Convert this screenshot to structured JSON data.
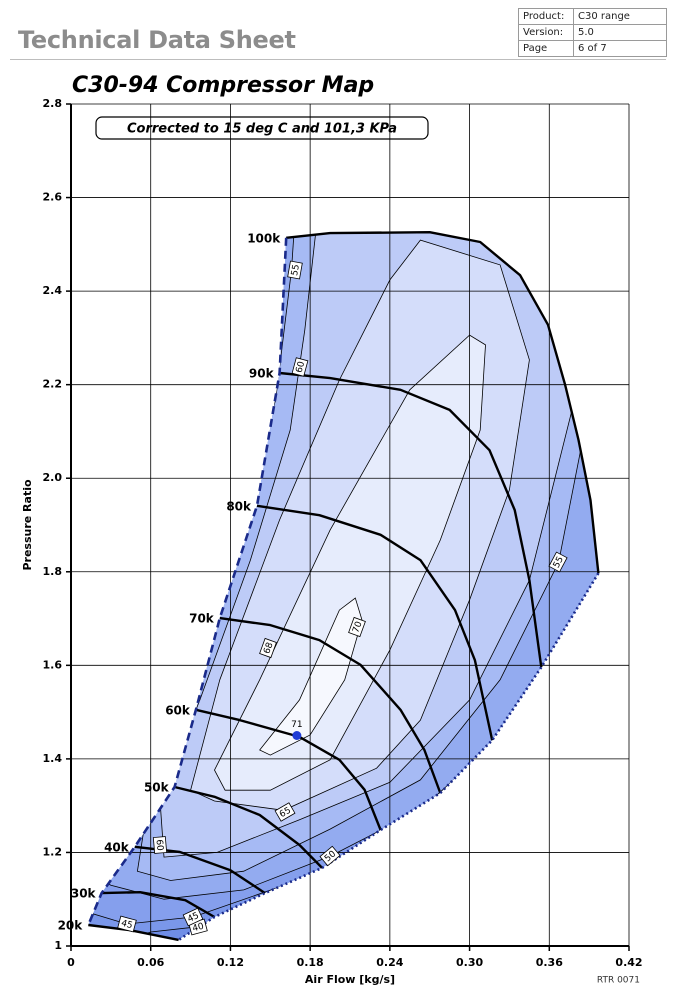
{
  "header": {
    "title": "Technical Data Sheet",
    "table": [
      [
        "Product:",
        "C30 range"
      ],
      [
        "Version:",
        "5.0"
      ],
      [
        "Page",
        "6 of 7"
      ]
    ]
  },
  "footer": "RTR 0071",
  "chart_data": {
    "type": "compressor-map",
    "title": "C30-94 Compressor Map",
    "subtitle": "Corrected to 15 deg C and 101,3 KPa",
    "x_label": "Air Flow [kg/s]",
    "y_label": "Pressure Ratio",
    "xlim": [
      0,
      0.42
    ],
    "ylim": [
      1,
      2.8
    ],
    "xticks": [
      0,
      0.06,
      0.12,
      0.18,
      0.24,
      {
        "value": 0.3,
        "label": "0.30"
      },
      0.36,
      0.42
    ],
    "yticks": [
      1,
      1.2,
      1.4,
      1.6,
      1.8,
      {
        "value": 2,
        "label": "2.0"
      },
      2.2,
      2.4,
      2.6,
      2.8
    ],
    "grid": true,
    "speed_line_color": "#000000",
    "surge_color": "#1a2a8a",
    "choke_color": "#1a2a8a",
    "envelope_color": "#6f8de6",
    "speed_lines": [
      {
        "name": "100k",
        "x": [
          0.162,
          0.195,
          0.27,
          0.308,
          0.338,
          0.359,
          0.372,
          0.382,
          0.391,
          0.397
        ],
        "values": [
          2.514,
          2.524,
          2.526,
          2.505,
          2.434,
          2.328,
          2.199,
          2.082,
          1.953,
          1.797
        ]
      },
      {
        "name": "90k",
        "x": [
          0.157,
          0.195,
          0.248,
          0.285,
          0.315,
          0.334,
          0.345,
          0.354
        ],
        "values": [
          2.225,
          2.214,
          2.189,
          2.146,
          2.06,
          1.932,
          1.782,
          1.596
        ]
      },
      {
        "name": "80k",
        "x": [
          0.14,
          0.187,
          0.233,
          0.263,
          0.289,
          0.304,
          0.317
        ],
        "values": [
          1.941,
          1.921,
          1.879,
          1.825,
          1.718,
          1.611,
          1.44
        ]
      },
      {
        "name": "70k",
        "x": [
          0.112,
          0.15,
          0.187,
          0.218,
          0.248,
          0.266,
          0.278
        ],
        "values": [
          1.701,
          1.686,
          1.654,
          1.601,
          1.505,
          1.419,
          1.327
        ]
      },
      {
        "name": "60k",
        "x": [
          0.094,
          0.127,
          0.172,
          0.202,
          0.221,
          0.233
        ],
        "values": [
          1.505,
          1.483,
          1.447,
          1.398,
          1.334,
          1.248
        ]
      },
      {
        "name": "50k",
        "x": [
          0.078,
          0.108,
          0.142,
          0.172,
          0.189
        ],
        "values": [
          1.34,
          1.319,
          1.28,
          1.216,
          1.167
        ]
      },
      {
        "name": "40k",
        "x": [
          0.048,
          0.082,
          0.12,
          0.146
        ],
        "values": [
          1.212,
          1.201,
          1.162,
          1.113
        ]
      },
      {
        "name": "30k",
        "x": [
          0.023,
          0.052,
          0.086,
          0.108
        ],
        "values": [
          1.113,
          1.115,
          1.098,
          1.062
        ]
      },
      {
        "name": "20k",
        "x": [
          0.013,
          0.044,
          0.081
        ],
        "values": [
          1.045,
          1.034,
          1.013
        ]
      }
    ],
    "efficiency_contours": [
      {
        "level": 40,
        "color": "#7a97ea",
        "x": [
          -0.02,
          -0.02,
          0.45,
          0.45,
          0.12,
          0.095,
          0.06,
          -0.02
        ],
        "values": [
          0.9,
          2.9,
          2.9,
          1.2,
          1.01,
          1.041,
          1.03,
          0.95
        ]
      },
      {
        "level": 45,
        "color": "#859fed",
        "x": [
          -0.008,
          -0.008,
          0.443,
          0.443,
          0.172,
          0.092,
          0.042,
          0.007
        ],
        "values": [
          1.088,
          2.894,
          2.894,
          1.312,
          1.141,
          1.062,
          1.047,
          1.077
        ]
      },
      {
        "level": 50,
        "color": "#93abf0",
        "x": [
          -0.02,
          -0.02,
          0.435,
          0.435,
          0.391,
          0.338,
          0.263,
          0.195,
          0.13,
          0.07,
          0.03
        ],
        "values": [
          1.2,
          2.9,
          2.9,
          1.82,
          1.697,
          1.483,
          1.291,
          1.192,
          1.12,
          1.1,
          1.13
        ]
      },
      {
        "level": 55,
        "color": "#a6baf4",
        "x": [
          0.05,
          0.056,
          0.086,
          0.123,
          0.154,
          0.166,
          0.172,
          0.428,
          0.391,
          0.367,
          0.323,
          0.263,
          0.195,
          0.13,
          0.075
        ],
        "values": [
          1.16,
          1.269,
          1.526,
          1.868,
          2.167,
          2.445,
          2.702,
          2.702,
          2.167,
          1.82,
          1.569,
          1.355,
          1.25,
          1.16,
          1.14
        ]
      },
      {
        "level": 60,
        "color": "#bdcbf7",
        "x": [
          0.07,
          0.067,
          0.097,
          0.135,
          0.165,
          0.176,
          0.187,
          0.398,
          0.379,
          0.345,
          0.3,
          0.24,
          0.172,
          0.11
        ],
        "values": [
          1.19,
          1.312,
          1.526,
          1.825,
          2.103,
          2.317,
          2.595,
          2.595,
          2.167,
          1.782,
          1.526,
          1.35,
          1.27,
          1.2
        ]
      },
      {
        "level": 65,
        "color": "#d4ddfa",
        "x": [
          0.09,
          0.112,
          0.157,
          0.202,
          0.24,
          0.263,
          0.323,
          0.345,
          0.33,
          0.3,
          0.263,
          0.23,
          0.16,
          0.108
        ],
        "values": [
          1.333,
          1.569,
          1.911,
          2.21,
          2.424,
          2.509,
          2.456,
          2.253,
          1.975,
          1.74,
          1.483,
          1.38,
          1.29,
          1.31
        ]
      },
      {
        "level": 68,
        "color": "#e6ecfc",
        "x": [
          0.108,
          0.142,
          0.195,
          0.255,
          0.3,
          0.312,
          0.308,
          0.278,
          0.24,
          0.195,
          0.15,
          0.116
        ],
        "values": [
          1.376,
          1.569,
          1.889,
          2.189,
          2.306,
          2.285,
          2.103,
          1.868,
          1.633,
          1.398,
          1.333,
          1.333
        ]
      },
      {
        "level": 70,
        "color": "#f6f8fe",
        "x": [
          0.142,
          0.172,
          0.202,
          0.214,
          0.219,
          0.206,
          0.18,
          0.15
        ],
        "values": [
          1.419,
          1.526,
          1.718,
          1.744,
          1.697,
          1.569,
          1.451,
          1.408
        ]
      }
    ],
    "peak": {
      "x": 0.17,
      "value": 1.45,
      "efficiency": 71,
      "color": "#1f3cd6"
    }
  }
}
